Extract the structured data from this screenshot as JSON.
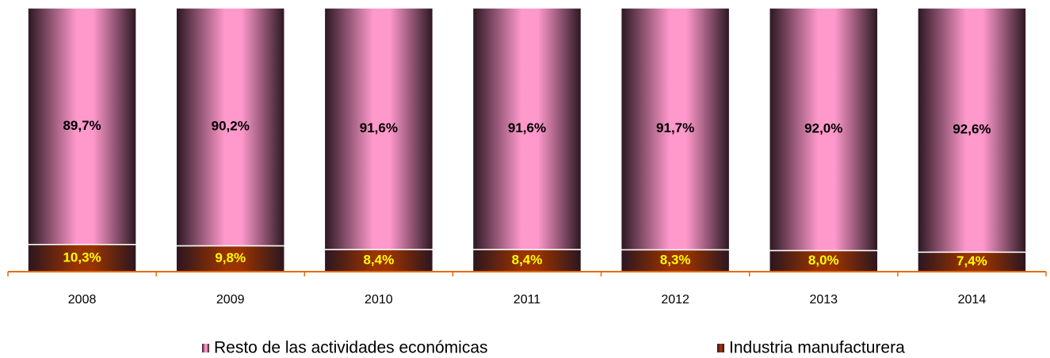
{
  "chart_data": {
    "type": "stacked_bar",
    "categories": [
      "2008",
      "2009",
      "2010",
      "2011",
      "2012",
      "2013",
      "2014"
    ],
    "ylim": [
      0,
      100
    ],
    "series": [
      {
        "name": "Resto de las actividades económicas",
        "color": "#ff99cc",
        "label_color": "#000000",
        "values": [
          89.7,
          90.2,
          91.6,
          91.6,
          91.7,
          92.0,
          92.6
        ],
        "value_labels": [
          "89,7%",
          "90,2%",
          "91,6%",
          "91,6%",
          "91,7%",
          "92,0%",
          "92,6%"
        ]
      },
      {
        "name": "Industria manufacturera",
        "color": "#993300",
        "label_color": "#ffff00",
        "values": [
          10.3,
          9.8,
          8.4,
          8.4,
          8.3,
          8.0,
          7.4
        ],
        "value_labels": [
          "10,3%",
          "9,8%",
          "8,4%",
          "8,4%",
          "8,3%",
          "8,0%",
          "7,4%"
        ]
      }
    ],
    "axis_color": "#e46c0a"
  }
}
